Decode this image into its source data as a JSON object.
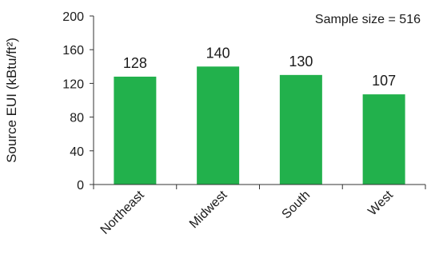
{
  "chart_data": {
    "type": "bar",
    "title": "",
    "annotation": "Sample size = 516",
    "xlabel": "",
    "ylabel": "Source EUI (kBtu/ft²)",
    "categories": [
      "Northeast",
      "Midwest",
      "South",
      "West"
    ],
    "values": [
      128,
      140,
      130,
      107
    ],
    "data_labels": [
      "128",
      "140",
      "130",
      "107"
    ],
    "yticks": [
      "0",
      "40",
      "80",
      "120",
      "160",
      "200"
    ],
    "ylim": [
      0,
      200
    ],
    "grid": false,
    "legend": "none",
    "bar_color": "#22b14c"
  }
}
